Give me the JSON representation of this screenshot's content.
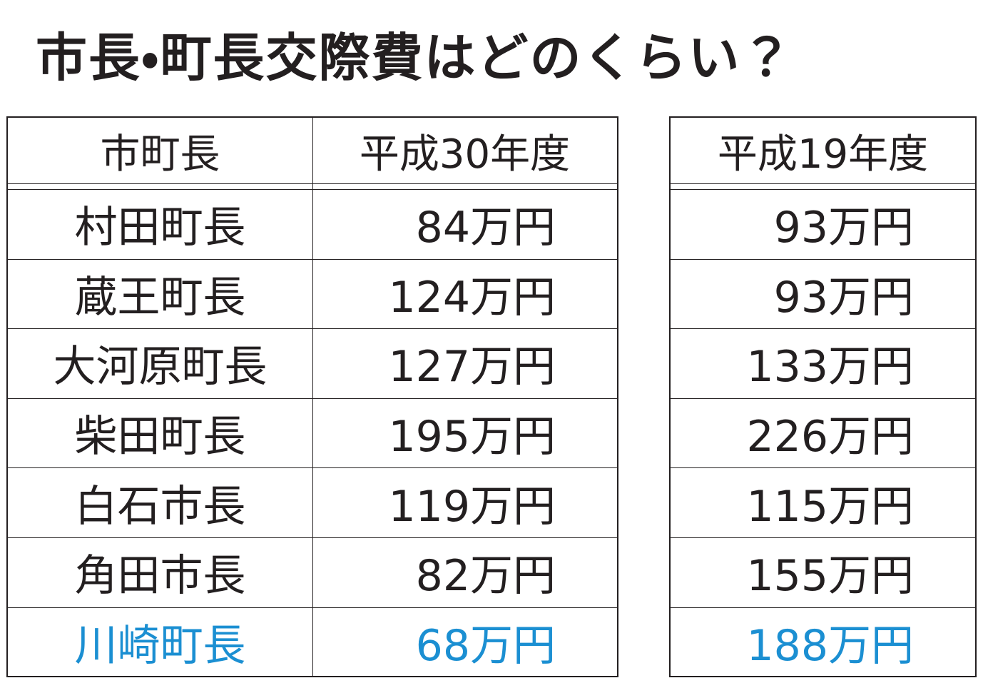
{
  "title": "市長・町長交際費はどのくらい？",
  "table_left": {
    "header": [
      "市町長",
      "平成30年度"
    ],
    "rows": [
      [
        "村田町長",
        "84万円"
      ],
      [
        "蔵王町長",
        "124万円"
      ],
      [
        "大河原町長",
        "127万円"
      ],
      [
        "柴田町長",
        "195万円"
      ],
      [
        "白石市長",
        "119万円"
      ],
      [
        "角田市長",
        "82万円"
      ],
      [
        "川崎町長",
        "68万円"
      ]
    ]
  },
  "table_right": {
    "header": [
      "平成19年度"
    ],
    "rows": [
      [
        "93万円"
      ],
      [
        "93万円"
      ],
      [
        "133万円"
      ],
      [
        "226万円"
      ],
      [
        "115万円"
      ],
      [
        "155万円"
      ],
      [
        "188万円"
      ]
    ]
  },
  "highlight_row": 6,
  "highlight_color": "#1b8fd2"
}
